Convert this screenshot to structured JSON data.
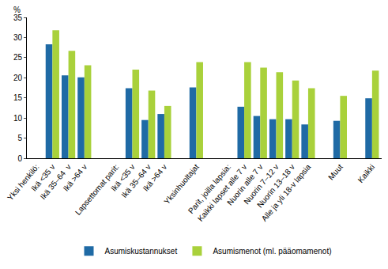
{
  "chart_data": {
    "type": "bar",
    "y_label": "%",
    "categories": [
      "Yksi henkilö:",
      "Ikä <35 v",
      "Ikä 35–64  v",
      "Ikä >64 v",
      null,
      "Lapsettomat parit:",
      "Ikä <35 v",
      "Ikä 35–64 v",
      "Ikä >64 v",
      null,
      "Yksinhuoltajat",
      null,
      "Parit, joilla lapsia:",
      "Kaikki lapset alle 7 v",
      "Nuorin alle 7 v",
      "Nuorin 7–12 v",
      "Nuorin 13–18 v",
      "Alle ja yli 18-v lapsia",
      null,
      "Muut",
      null,
      "Kaikki"
    ],
    "series": [
      {
        "name": "Asumiskustannukset",
        "color": "#1f6aa5",
        "values": [
          null,
          28.3,
          20.6,
          20.1,
          null,
          null,
          17.4,
          9.5,
          11.0,
          null,
          17.6,
          null,
          null,
          12.8,
          10.5,
          9.7,
          9.7,
          8.4,
          null,
          9.3,
          null,
          14.9
        ]
      },
      {
        "name": "Asumismenot (ml. pääomamenot)",
        "color": "#a9d13b",
        "values": [
          null,
          31.8,
          26.7,
          23.1,
          null,
          null,
          22.0,
          16.8,
          13.0,
          null,
          23.9,
          null,
          null,
          23.9,
          22.5,
          21.4,
          19.3,
          17.4,
          null,
          15.5,
          null,
          21.8
        ]
      }
    ],
    "ylim": [
      0,
      35
    ],
    "yticks": [
      0,
      5,
      10,
      15,
      20,
      25,
      30,
      35
    ],
    "grid": false,
    "legend": "bottom"
  }
}
